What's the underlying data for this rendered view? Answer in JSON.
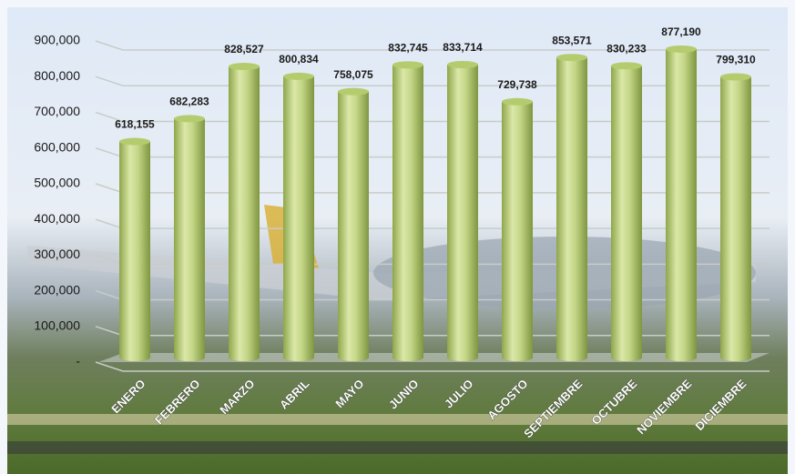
{
  "chart_data": {
    "type": "bar",
    "categories": [
      "ENERO",
      "FEBRERO",
      "MARZO",
      "ABRIL",
      "MAYO",
      "JUNIO",
      "JULIO",
      "AGOSTO",
      "SEPTIEMBRE",
      "OCTUBRE",
      "NOVIEMBRE",
      "DICIEMBRE"
    ],
    "values": [
      618155,
      682283,
      828527,
      800834,
      758075,
      832745,
      833714,
      729738,
      853571,
      830233,
      877190,
      799310
    ],
    "value_labels": [
      "618,155",
      "682,283",
      "828,527",
      "800,834",
      "758,075",
      "832,745",
      "833,714",
      "729,738",
      "853,571",
      "830,233",
      "877,190",
      "799,310"
    ],
    "color": "#b5cc6e",
    "ylim": [
      0,
      900000
    ],
    "yticks": [
      {
        "value": 0,
        "label": "-"
      },
      {
        "value": 100000,
        "label": "100,000"
      },
      {
        "value": 200000,
        "label": "200,000"
      },
      {
        "value": 300000,
        "label": "300,000"
      },
      {
        "value": 400000,
        "label": "400,000"
      },
      {
        "value": 500000,
        "label": "500,000"
      },
      {
        "value": 600000,
        "label": "600,000"
      },
      {
        "value": 700000,
        "label": "700,000"
      },
      {
        "value": 800000,
        "label": "800,000"
      },
      {
        "value": 900000,
        "label": "900,000"
      }
    ],
    "grid": true
  }
}
